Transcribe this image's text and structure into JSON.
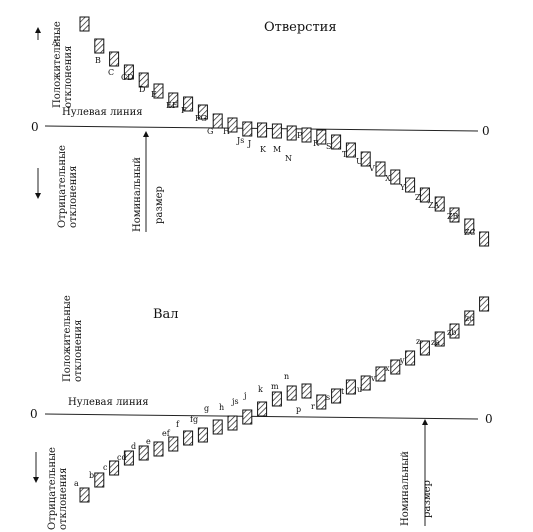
{
  "holes": {
    "title": "Отверстия",
    "zero_left": "0",
    "zero_right": "0",
    "zero_line_label": "Нулевая линия",
    "positive_label_1": "Положительные",
    "positive_label_2": "отклонения",
    "negative_label_1": "Отрицательные",
    "negative_label_2": "отклонения",
    "nominal_label_1": "Номинальный",
    "nominal_label_2": "размер",
    "fields": [
      "A",
      "B",
      "C",
      "CD",
      "D",
      "E",
      "EF",
      "F",
      "FG",
      "G",
      "H",
      "Js",
      "J",
      "K",
      "M",
      "N",
      "P",
      "R",
      "S",
      "T",
      "U",
      "V",
      "X",
      "Y",
      "Z",
      "ZA",
      "ZB",
      "ZC"
    ]
  },
  "shafts": {
    "title": "Вал",
    "zero_left": "0",
    "zero_right": "0",
    "zero_line_label": "Нулевая линия",
    "positive_label_1": "Положительные",
    "positive_label_2": "отклонения",
    "negative_label_1": "Отрицательные",
    "negative_label_2": "отклонения",
    "nominal_label_1": "Номинальный",
    "nominal_label_2": "размер",
    "fields": [
      "a",
      "b",
      "c",
      "cd",
      "d",
      "e",
      "ef",
      "f",
      "fg",
      "g",
      "h",
      "js",
      "j",
      "k",
      "m",
      "n",
      "p",
      "r",
      "s",
      "t",
      "u",
      "v",
      "x",
      "y",
      "z",
      "za",
      "zb",
      "zc"
    ]
  }
}
